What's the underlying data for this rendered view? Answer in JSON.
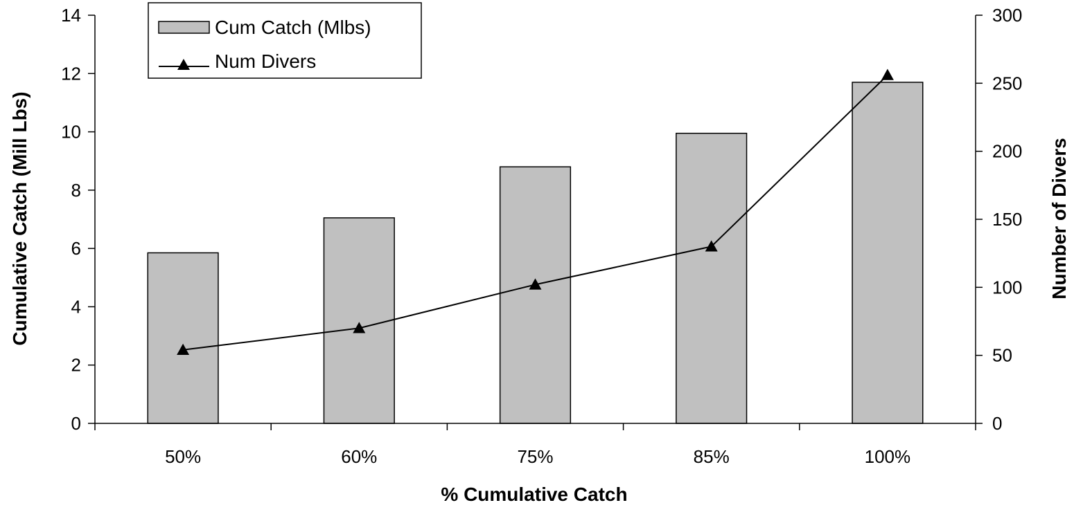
{
  "chart_data": {
    "type": "bar",
    "title": "",
    "categories": [
      "50%",
      "60%",
      "75%",
      "85%",
      "100%"
    ],
    "xlabel": "% Cumulative Catch",
    "ylabel": "Cumulative Catch (Mill Lbs)",
    "y2label": "Number of Divers",
    "ylim": [
      0,
      14
    ],
    "y2lim": [
      0,
      300
    ],
    "yticks": [
      "0",
      "2",
      "4",
      "6",
      "8",
      "10",
      "12",
      "14"
    ],
    "y2ticks": [
      "0",
      "50",
      "100",
      "150",
      "200",
      "250",
      "300"
    ],
    "grid": false,
    "legend_position": "top-left",
    "series": [
      {
        "name": "Cum Catch (Mlbs)",
        "type": "bar",
        "axis": "left",
        "color": "#c0c0c0",
        "values": [
          5.85,
          7.05,
          8.8,
          9.95,
          11.7
        ]
      },
      {
        "name": "Num Divers",
        "type": "line",
        "axis": "right",
        "color": "#000000",
        "marker": "triangle",
        "values": [
          54,
          70,
          102,
          130,
          256
        ]
      }
    ]
  }
}
